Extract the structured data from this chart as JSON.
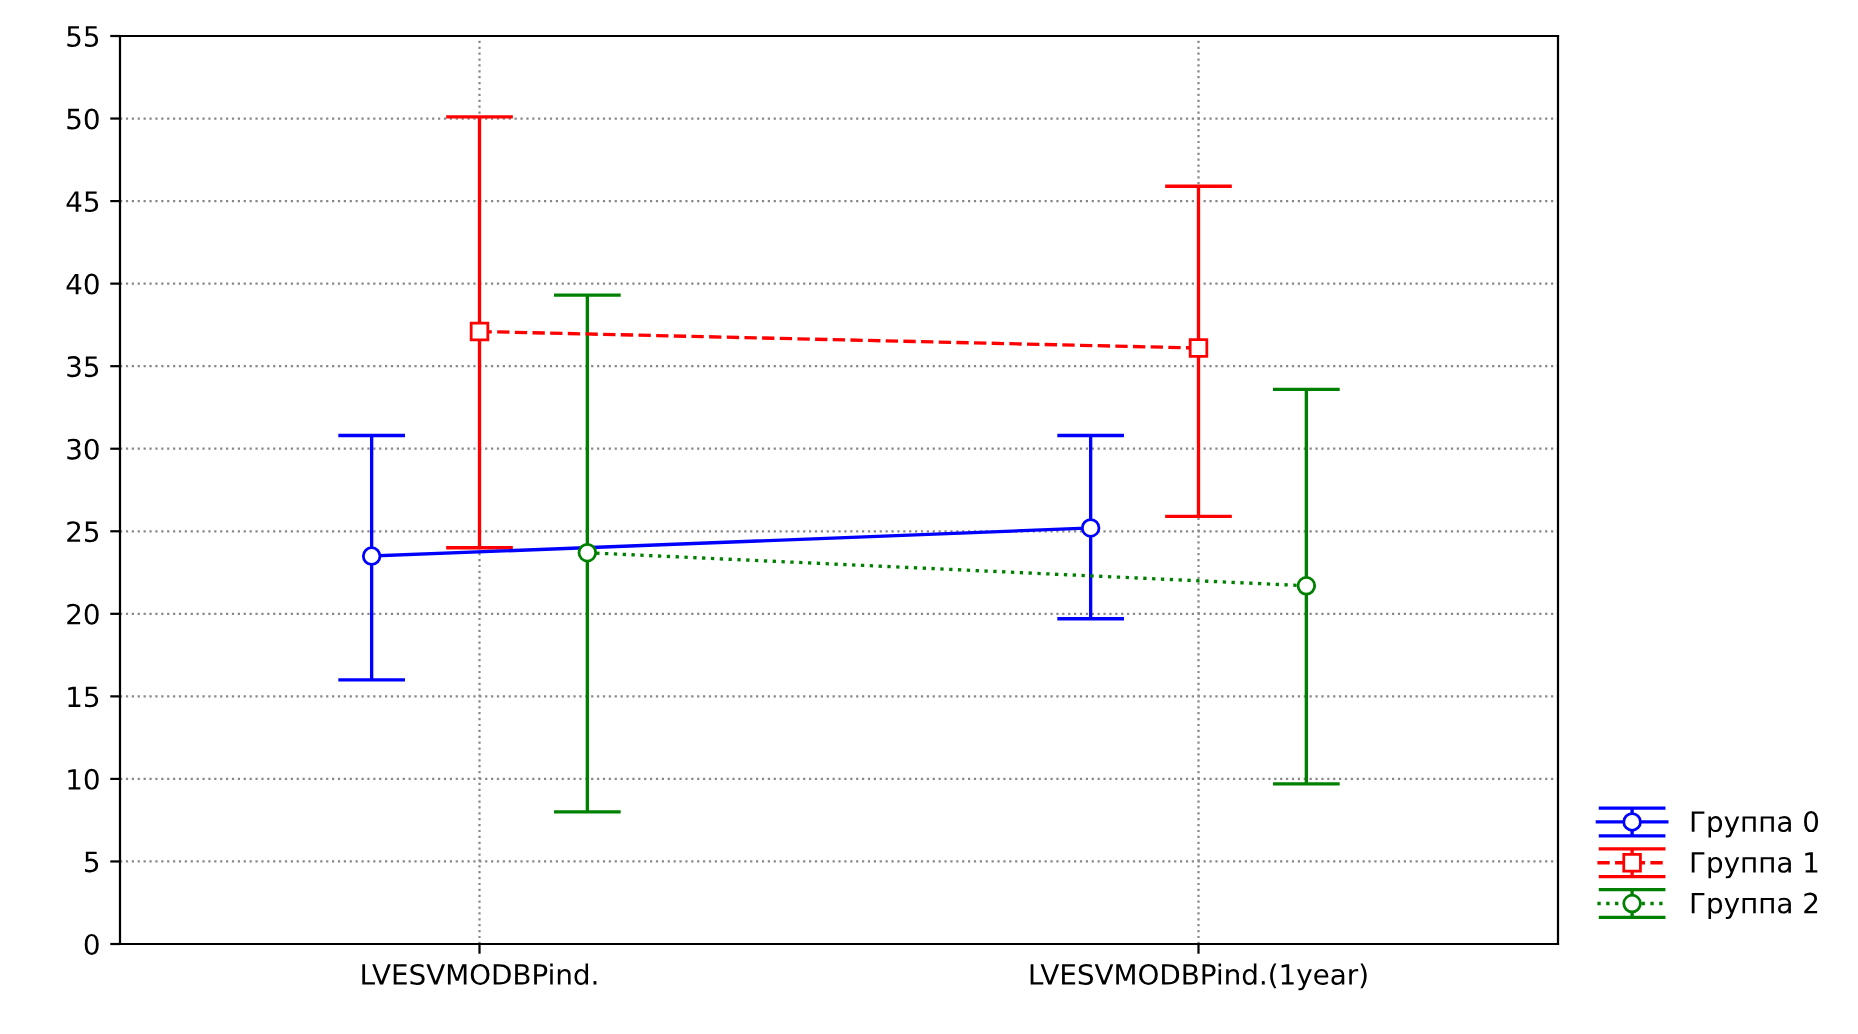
{
  "chart_data": {
    "type": "line",
    "categories": [
      "LVESVMODBPind.",
      "LVESVMODBPind.(1year)"
    ],
    "series": [
      {
        "name": "Группа 0",
        "color": "#0000ff",
        "values": [
          23.5,
          25.2
        ],
        "errors": [
          [
            16.0,
            30.8
          ],
          [
            19.7,
            30.8
          ]
        ],
        "marker": "circle",
        "line_style": "solid"
      },
      {
        "name": "Группа 1",
        "color": "#ff0000",
        "values": [
          37.1,
          36.1
        ],
        "errors": [
          [
            24.0,
            50.1
          ],
          [
            25.9,
            45.9
          ]
        ],
        "marker": "square",
        "line_style": "dashed"
      },
      {
        "name": "Группа 2",
        "color": "#008000",
        "values": [
          23.7,
          21.7
        ],
        "errors": [
          [
            8.0,
            39.3
          ],
          [
            9.7,
            33.6
          ]
        ],
        "marker": "circle",
        "line_style": "dotted"
      }
    ],
    "ylim": [
      0,
      55
    ],
    "yticks": [
      0,
      5,
      10,
      15,
      20,
      25,
      30,
      35,
      40,
      45,
      50,
      55
    ],
    "grid": true,
    "legend": "bottom right"
  }
}
